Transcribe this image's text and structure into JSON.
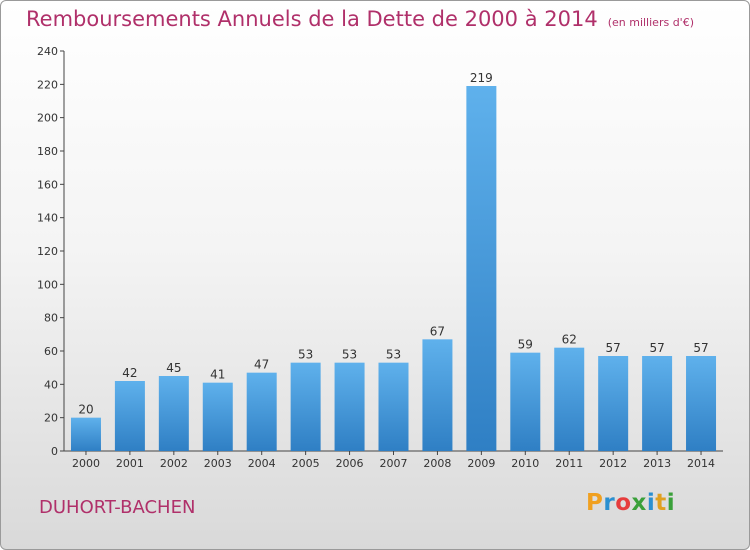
{
  "header": {
    "title": "Remboursements Annuels de la Dette de 2000 à 2014",
    "unit": "(en milliers d'€)"
  },
  "footer": {
    "commune": "DUHORT-BACHEN",
    "logo": {
      "letters": [
        "P",
        "r",
        "o",
        "x",
        "i",
        "t",
        "i"
      ],
      "colors": [
        "#f0a020",
        "#2a8fd0",
        "#e63c3c",
        "#3aa03a",
        "#2a8fd0",
        "#e0a020",
        "#3aa03a"
      ]
    }
  },
  "colors": {
    "bar_light": "#5fb1ec",
    "bar_dark": "#2f7fc4",
    "title": "#b0306a"
  },
  "chart_data": {
    "type": "bar",
    "title": "Remboursements Annuels de la Dette de 2000 à 2014",
    "xlabel": "",
    "ylabel": "",
    "categories": [
      "2000",
      "2001",
      "2002",
      "2003",
      "2004",
      "2005",
      "2006",
      "2007",
      "2008",
      "2009",
      "2010",
      "2011",
      "2012",
      "2013",
      "2014"
    ],
    "values": [
      20,
      42,
      45,
      41,
      47,
      53,
      53,
      53,
      67,
      219,
      59,
      62,
      57,
      57,
      57
    ],
    "ylim": [
      0,
      240
    ],
    "yticks": [
      0,
      20,
      40,
      60,
      80,
      100,
      120,
      140,
      160,
      180,
      200,
      220,
      240
    ],
    "grid": false,
    "legend": "none"
  }
}
